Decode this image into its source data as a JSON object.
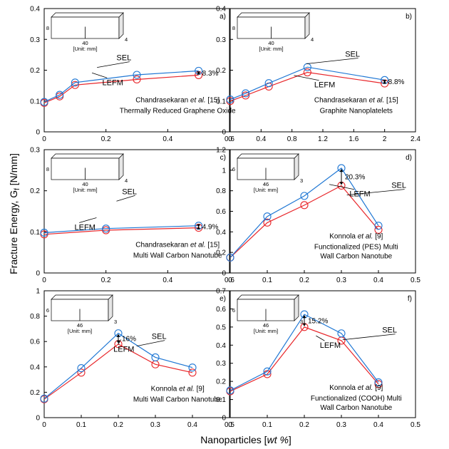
{
  "figure": {
    "ylabel": "Fracture Energy, G",
    "ylabel_sub": "f",
    "ylabel_unit": " [N/mm]",
    "xlabel": "Nanoparticles [",
    "xlabel_italic": "wt %",
    "xlabel_end": "]"
  },
  "colors": {
    "SEL": "#1f77d4",
    "LEFM": "#e8262a"
  },
  "chart_data": [
    {
      "type": "line",
      "panel": "a)",
      "xlim": [
        0,
        0.6
      ],
      "ylim": [
        0,
        0.4
      ],
      "xticks": [
        "0",
        "0.2",
        "0.4",
        "0.6"
      ],
      "yticks": [
        "0",
        "0.1",
        "0.2",
        "0.3",
        "0.4"
      ],
      "series": [
        {
          "name": "SEL",
          "x": [
            0,
            0.05,
            0.1,
            0.3,
            0.5
          ],
          "values": [
            0.097,
            0.12,
            0.16,
            0.185,
            0.198
          ]
        },
        {
          "name": "LEFM",
          "x": [
            0,
            0.05,
            0.1,
            0.3,
            0.5
          ],
          "values": [
            0.094,
            0.115,
            0.152,
            0.17,
            0.184
          ]
        }
      ],
      "sel_label": "SEL",
      "lefm_label": "LEFM",
      "pct": "8.3%",
      "ref": "Chandrasekaran",
      "ref_etal": "et al.",
      "ref_num": " [15]",
      "material": [
        "Thermally Reduced Graphene Oxide"
      ],
      "specimen": {
        "h": "8",
        "l": "40",
        "w": "4",
        "unit": "[Unit: mm]"
      }
    },
    {
      "type": "line",
      "panel": "b)",
      "xlim": [
        0,
        2.4
      ],
      "ylim": [
        0,
        0.4
      ],
      "xticks": [
        "0",
        "0.4",
        "0.8",
        "1.2",
        "1.6",
        "2",
        "2.4"
      ],
      "yticks": [
        "0",
        "0.1",
        "0.2",
        "0.3",
        "0.4"
      ],
      "series": [
        {
          "name": "SEL",
          "x": [
            0,
            0.2,
            0.5,
            1,
            2
          ],
          "values": [
            0.105,
            0.125,
            0.158,
            0.21,
            0.168
          ]
        },
        {
          "name": "LEFM",
          "x": [
            0,
            0.2,
            0.5,
            1,
            2
          ],
          "values": [
            0.1,
            0.118,
            0.147,
            0.193,
            0.157
          ]
        }
      ],
      "sel_label": "SEL",
      "lefm_label": "LEFM",
      "pct": "8.8%",
      "ref": "Chandrasekaran",
      "ref_etal": "et al.",
      "ref_num": " [15]",
      "material": [
        "Graphite Nanoplatelets"
      ],
      "specimen": {
        "h": "8",
        "l": "40",
        "w": "4",
        "unit": "[Unit: mm]"
      }
    },
    {
      "type": "line",
      "panel": "c)",
      "xlim": [
        0,
        0.6
      ],
      "ylim": [
        0,
        0.3
      ],
      "xticks": [
        "0",
        "0.2",
        "0.4",
        "0.6"
      ],
      "yticks": [
        "0",
        "0.1",
        "0.2",
        "0.3"
      ],
      "series": [
        {
          "name": "SEL",
          "x": [
            0,
            0.2,
            0.5
          ],
          "values": [
            0.098,
            0.108,
            0.115
          ]
        },
        {
          "name": "LEFM",
          "x": [
            0,
            0.2,
            0.5
          ],
          "values": [
            0.094,
            0.104,
            0.11
          ]
        }
      ],
      "sel_label": "SEL",
      "lefm_label": "LEFM",
      "pct": "4.9%",
      "ref": "Chandrasekaran",
      "ref_etal": "et al.",
      "ref_num": " [15]",
      "material": [
        "Multi Wall Carbon Nanotube"
      ],
      "specimen": {
        "h": "8",
        "l": "40",
        "w": "4",
        "unit": "[Unit: mm]"
      }
    },
    {
      "type": "line",
      "panel": "d)",
      "xlim": [
        0,
        0.5
      ],
      "ylim": [
        0,
        1.2
      ],
      "xticks": [
        "0",
        "0.1",
        "0.2",
        "0.3",
        "0.4",
        "0.5"
      ],
      "yticks": [
        "0",
        "0.2",
        "0.4",
        "0.6",
        "0.8",
        "1",
        "1.2"
      ],
      "series": [
        {
          "name": "SEL",
          "x": [
            0,
            0.1,
            0.2,
            0.3,
            0.4
          ],
          "values": [
            0.15,
            0.55,
            0.75,
            1.02,
            0.46
          ]
        },
        {
          "name": "LEFM",
          "x": [
            0,
            0.1,
            0.2,
            0.3,
            0.4
          ],
          "values": [
            0.15,
            0.49,
            0.66,
            0.85,
            0.42
          ]
        }
      ],
      "sel_label": "SEL",
      "lefm_label": "LEFM",
      "pct": "20.3%",
      "ref": "Konnola",
      "ref_etal": "et al.",
      "ref_num": " [9]",
      "material": [
        "Functionalized (PES) Multi",
        "Wall Carbon Nanotube"
      ],
      "specimen": {
        "h": "6",
        "l": "46",
        "w": "3",
        "unit": "[Unit: mm]"
      }
    },
    {
      "type": "line",
      "panel": "e)",
      "xlim": [
        0,
        0.5
      ],
      "ylim": [
        0,
        1
      ],
      "xticks": [
        "0",
        "0.1",
        "0.2",
        "0.3",
        "0.4",
        "0.5"
      ],
      "yticks": [
        "0",
        "0.2",
        "0.4",
        "0.6",
        "0.8",
        "1"
      ],
      "series": [
        {
          "name": "SEL",
          "x": [
            0,
            0.1,
            0.2,
            0.3,
            0.4
          ],
          "values": [
            0.15,
            0.39,
            0.665,
            0.475,
            0.395
          ]
        },
        {
          "name": "LEFM",
          "x": [
            0,
            0.1,
            0.2,
            0.3,
            0.4
          ],
          "values": [
            0.145,
            0.355,
            0.58,
            0.42,
            0.355
          ]
        }
      ],
      "sel_label": "SEL",
      "lefm_label": "LEFM",
      "pct": "16%",
      "ref": "Konnola",
      "ref_etal": "et al.",
      "ref_num": " [9]",
      "material": [
        "Multi Wall Carbon Nanotube"
      ],
      "specimen": {
        "h": "6",
        "l": "46",
        "w": "3",
        "unit": "[Unit: mm]"
      }
    },
    {
      "type": "line",
      "panel": "f)",
      "xlim": [
        0,
        0.5
      ],
      "ylim": [
        0,
        0.7
      ],
      "xticks": [
        "0",
        "0.1",
        "0.2",
        "0.3",
        "0.4",
        "0.5"
      ],
      "yticks": [
        "0",
        "0.1",
        "0.2",
        "0.3",
        "0.4",
        "0.5",
        "0.6",
        "0.7"
      ],
      "series": [
        {
          "name": "SEL",
          "x": [
            0,
            0.1,
            0.2,
            0.3,
            0.4
          ],
          "values": [
            0.15,
            0.255,
            0.57,
            0.465,
            0.195
          ]
        },
        {
          "name": "LEFM",
          "x": [
            0,
            0.1,
            0.2,
            0.3,
            0.4
          ],
          "values": [
            0.145,
            0.24,
            0.5,
            0.425,
            0.185
          ]
        }
      ],
      "sel_label": "SEL",
      "lefm_label": "LEFM",
      "pct": "15.2%",
      "ref": "Konnola",
      "ref_etal": "et al.",
      "ref_num": " [9]",
      "material": [
        "Functionalized (COOH) Multi",
        "Wall Carbon Nanotube"
      ],
      "specimen": {
        "h": "6",
        "l": "46",
        "w": "3",
        "unit": "[Unit: mm]"
      }
    }
  ]
}
